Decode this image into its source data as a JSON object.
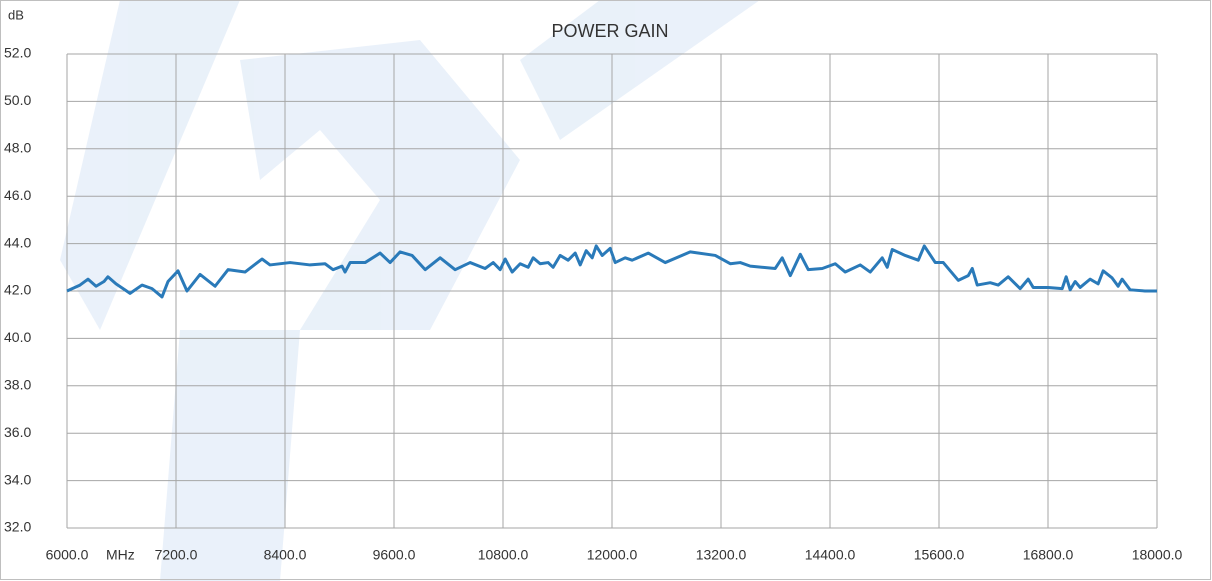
{
  "chart_data": {
    "type": "line",
    "title": "POWER GAIN",
    "y_label": "dB",
    "x_label": "MHz",
    "xlim": [
      6000,
      18000
    ],
    "xticks": [
      {
        "value": 6000,
        "label": "6000.0"
      },
      {
        "value": 7200,
        "label": "7200.0"
      },
      {
        "value": 8400,
        "label": "8400.0"
      },
      {
        "value": 9600,
        "label": "9600.0"
      },
      {
        "value": 10800,
        "label": "10800.0"
      },
      {
        "value": 12000,
        "label": "12000.0"
      },
      {
        "value": 13200,
        "label": "13200.0"
      },
      {
        "value": 14400,
        "label": "14400.0"
      },
      {
        "value": 15600,
        "label": "15600.0"
      },
      {
        "value": 16800,
        "label": "16800.0"
      },
      {
        "value": 18000,
        "label": "18000.0"
      }
    ],
    "ylim": [
      32,
      52
    ],
    "yticks": [
      {
        "value": 32,
        "label": "32.0"
      },
      {
        "value": 34,
        "label": "34.0"
      },
      {
        "value": 36,
        "label": "36.0"
      },
      {
        "value": 38,
        "label": "38.0"
      },
      {
        "value": 40,
        "label": "40.0"
      },
      {
        "value": 42,
        "label": "42.0"
      },
      {
        "value": 44,
        "label": "44.0"
      },
      {
        "value": 46,
        "label": "46.0"
      },
      {
        "value": 48,
        "label": "48.0"
      },
      {
        "value": 50,
        "label": "50.0"
      },
      {
        "value": 52,
        "label": "52.0"
      }
    ],
    "grid": true,
    "x": [
      6000,
      6143,
      6231,
      6320,
      6407,
      6450,
      6540,
      6694,
      6826,
      6936,
      7046,
      7112,
      7222,
      7321,
      7465,
      7630,
      7773,
      7960,
      8147,
      8235,
      8456,
      8676,
      8841,
      8929,
      9028,
      9061,
      9117,
      9282,
      9447,
      9557,
      9667,
      9799,
      9943,
      10108,
      10273,
      10438,
      10603,
      10692,
      10769,
      10824,
      10901,
      10989,
      11077,
      11132,
      11209,
      11297,
      11352,
      11429,
      11517,
      11595,
      11650,
      11716,
      11782,
      11826,
      11892,
      11980,
      12035,
      12145,
      12222,
      12399,
      12586,
      12861,
      13137,
      13302,
      13412,
      13522,
      13797,
      13874,
      13963,
      14073,
      14161,
      14315,
      14458,
      14568,
      14733,
      14843,
      14931,
      14975,
      15030,
      15085,
      15228,
      15372,
      15438,
      15559,
      15647,
      15812,
      15922,
      15966,
      16021,
      16164,
      16252,
      16362,
      16494,
      16582,
      16637,
      16802,
      16956,
      17000,
      17044,
      17099,
      17154,
      17264,
      17352,
      17407,
      17506,
      17572,
      17616,
      17704,
      17870,
      18000
    ],
    "series": [
      {
        "name": "POWER GAIN",
        "color": "#2a7ab9",
        "values": [
          42.0,
          42.25,
          42.5,
          42.2,
          42.4,
          42.6,
          42.3,
          41.9,
          42.25,
          42.1,
          41.75,
          42.4,
          42.85,
          42.0,
          42.7,
          42.2,
          42.9,
          42.8,
          43.35,
          43.1,
          43.2,
          43.1,
          43.15,
          42.9,
          43.05,
          42.8,
          43.2,
          43.2,
          43.6,
          43.2,
          43.65,
          43.5,
          42.9,
          43.4,
          42.9,
          43.2,
          42.95,
          43.2,
          42.9,
          43.35,
          42.8,
          43.15,
          43.0,
          43.4,
          43.15,
          43.2,
          43.0,
          43.5,
          43.3,
          43.6,
          43.1,
          43.7,
          43.4,
          43.9,
          43.5,
          43.8,
          43.2,
          43.4,
          43.3,
          43.6,
          43.2,
          43.65,
          43.5,
          43.15,
          43.2,
          43.05,
          42.95,
          43.4,
          42.65,
          43.55,
          42.9,
          42.95,
          43.15,
          42.8,
          43.1,
          42.8,
          43.2,
          43.4,
          43.0,
          43.75,
          43.5,
          43.3,
          43.9,
          43.2,
          43.2,
          42.45,
          42.65,
          42.95,
          42.25,
          42.35,
          42.25,
          42.6,
          42.1,
          42.5,
          42.15,
          42.15,
          42.1,
          42.6,
          42.05,
          42.4,
          42.15,
          42.5,
          42.3,
          42.85,
          42.55,
          42.2,
          42.5,
          42.05,
          42.0,
          42.0
        ]
      }
    ]
  }
}
